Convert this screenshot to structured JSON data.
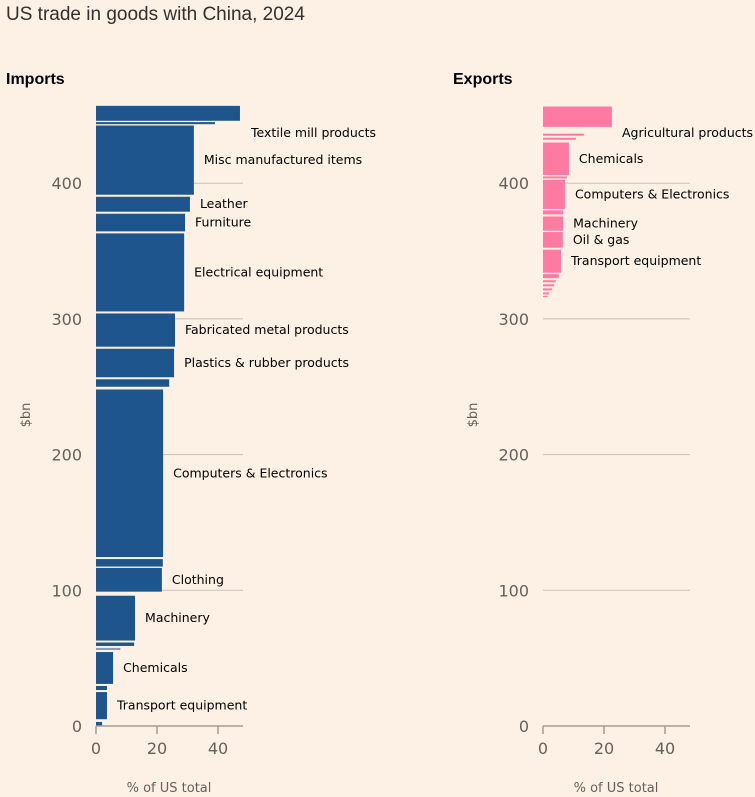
{
  "title": "US trade in goods with China, 2024",
  "chart_data": [
    {
      "type": "bar",
      "title": "Imports",
      "xlabel": "% of US total",
      "ylabel": "$bn",
      "ylim": [
        0,
        460
      ],
      "xlim": [
        0,
        48
      ],
      "yticks": [
        "0",
        "100",
        "200",
        "300",
        "400"
      ],
      "xticks": [
        "0",
        "20",
        "40"
      ],
      "color": "#1e558c",
      "segments": [
        {
          "label": "",
          "start": 0,
          "end": 3,
          "pct": 2
        },
        {
          "label": "Transport equipment",
          "start": 5,
          "end": 25,
          "pct": 3.6
        },
        {
          "label": "",
          "start": 26.5,
          "end": 29.5,
          "pct": 3.6
        },
        {
          "label": "Chemicals",
          "start": 31,
          "end": 54.5,
          "pct": 5.6
        },
        {
          "label": "",
          "start": 56,
          "end": 57.5,
          "pct": 8,
          "light": true
        },
        {
          "label": "",
          "start": 59,
          "end": 61.5,
          "pct": 12.5
        },
        {
          "label": "Machinery",
          "start": 63,
          "end": 96,
          "pct": 12.8
        },
        {
          "label": "Clothing",
          "start": 99,
          "end": 116.5,
          "pct": 21.6
        },
        {
          "label": "",
          "start": 117.5,
          "end": 123,
          "pct": 21.9
        },
        {
          "label": "Computers & Electronics",
          "start": 124.5,
          "end": 248,
          "pct": 22
        },
        {
          "label": "",
          "start": 250,
          "end": 255.5,
          "pct": 24
        },
        {
          "label": "Plastics & rubber products",
          "start": 257,
          "end": 278,
          "pct": 25.6
        },
        {
          "label": "Fabricated metal products",
          "start": 279.5,
          "end": 304,
          "pct": 25.9
        },
        {
          "label": "Electrical equipment",
          "start": 305.5,
          "end": 363,
          "pct": 28.9
        },
        {
          "label": "Furniture",
          "start": 364.5,
          "end": 377.5,
          "pct": 29.2
        },
        {
          "label": "Leather",
          "start": 379,
          "end": 390,
          "pct": 30.8
        },
        {
          "label": "Misc manufactured items",
          "start": 391.5,
          "end": 442.5,
          "pct": 32.1
        },
        {
          "label": "Textile mill products",
          "start": 443.5,
          "end": 445,
          "pct": 39
        },
        {
          "label": "",
          "start": 446,
          "end": 457,
          "pct": 47.2
        }
      ]
    },
    {
      "type": "bar",
      "title": "Exports",
      "xlabel": "% of US total",
      "ylabel": "$bn",
      "ylim": [
        0,
        460
      ],
      "xlim": [
        0,
        48
      ],
      "yticks": [
        "0",
        "100",
        "200",
        "300",
        "400"
      ],
      "xticks": [
        "0",
        "20",
        "40"
      ],
      "color": "#ff7aa3",
      "segments": [
        {
          "label": "",
          "start": 316,
          "end": 317,
          "pct": 1.5
        },
        {
          "label": "",
          "start": 318,
          "end": 319.5,
          "pct": 2
        },
        {
          "label": "",
          "start": 321,
          "end": 322.5,
          "pct": 3
        },
        {
          "label": "",
          "start": 324,
          "end": 325.5,
          "pct": 3.7
        },
        {
          "label": "",
          "start": 327,
          "end": 328.5,
          "pct": 4.2
        },
        {
          "label": "",
          "start": 330,
          "end": 333,
          "pct": 5.2
        },
        {
          "label": "Transport equipment",
          "start": 334,
          "end": 351,
          "pct": 5.9
        },
        {
          "label": "Oil & gas",
          "start": 352.5,
          "end": 364,
          "pct": 6.5
        },
        {
          "label": "Machinery",
          "start": 365,
          "end": 375.5,
          "pct": 6.6
        },
        {
          "label": "",
          "start": 377,
          "end": 380,
          "pct": 6.6
        },
        {
          "label": "Computers & Electronics",
          "start": 381,
          "end": 402.5,
          "pct": 7.2
        },
        {
          "label": "",
          "start": 403.5,
          "end": 405,
          "pct": 7.9
        },
        {
          "label": "Chemicals",
          "start": 406,
          "end": 430,
          "pct": 8.5
        },
        {
          "label": "",
          "start": 432,
          "end": 433.5,
          "pct": 10.8
        },
        {
          "label": "",
          "start": 435,
          "end": 436.5,
          "pct": 13.4
        },
        {
          "label": "Agricultural products",
          "start": 441.5,
          "end": 456.5,
          "pct": 22.6
        }
      ]
    }
  ]
}
